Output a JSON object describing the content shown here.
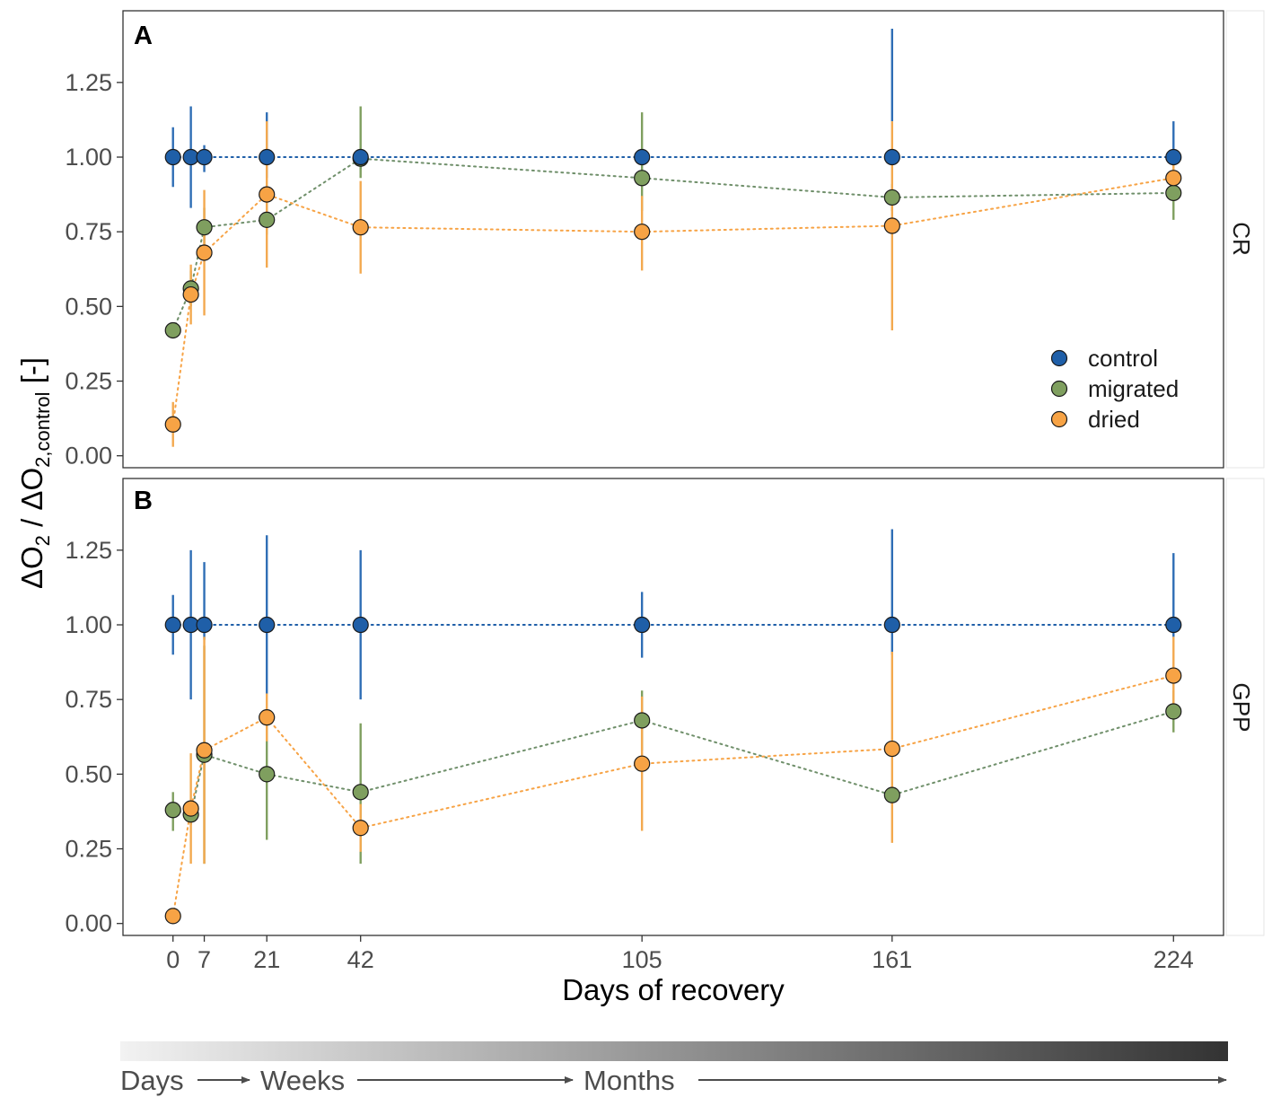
{
  "colors": {
    "control": "#1f5fa8",
    "migrated": "#7f9f5f",
    "dried": "#f7a345",
    "err_control": "#2f6eb5",
    "err_migrated": "#7f9f5f",
    "err_dried": "#f3a94f"
  },
  "chart_data": {
    "type": "scatter",
    "xlabel": "Days of recovery",
    "ylabel_parts": {
      "delta": "Δ",
      "o": "O",
      "sub1": "2",
      "slash": " / ",
      "sub2": "2,control",
      "unit": " [-]"
    },
    "x_ticks": [
      0,
      7,
      21,
      42,
      105,
      161,
      224
    ],
    "x_tick_labels": [
      "0",
      "7",
      "21",
      "42",
      "105",
      "161",
      "224"
    ],
    "xlim": [
      -11.2,
      235.2
    ],
    "ylim": [
      -0.04,
      1.49
    ],
    "y_ticks": [
      0,
      0.25,
      0.5,
      0.75,
      1.0,
      1.25
    ],
    "y_tick_labels": [
      "0.00",
      "0.25",
      "0.50",
      "0.75",
      "1.00",
      "1.25"
    ],
    "legend": [
      "control",
      "migrated",
      "dried"
    ],
    "legend_position": "bottom-right of panel A",
    "panels": [
      {
        "tag": "A",
        "strip": "CR",
        "series": [
          {
            "name": "control",
            "x": [
              0,
              4,
              7,
              21,
              42,
              105,
              161,
              224
            ],
            "y": [
              1.0,
              1.0,
              1.0,
              1.0,
              1.0,
              1.0,
              1.0,
              1.0
            ],
            "lo": [
              0.9,
              0.83,
              0.95,
              0.93,
              0.96,
              0.97,
              1.12,
              0.97
            ],
            "hi": [
              1.1,
              1.17,
              1.04,
              1.15,
              1.02,
              1.03,
              1.43,
              1.12
            ]
          },
          {
            "name": "migrated",
            "x": [
              0,
              4,
              7,
              21,
              42,
              105,
              161,
              224
            ],
            "y": [
              0.42,
              0.56,
              0.765,
              0.79,
              0.995,
              0.93,
              0.865,
              0.88
            ],
            "lo": [
              0.42,
              0.5,
              0.7,
              0.74,
              0.93,
              0.82,
              0.82,
              0.79
            ],
            "hi": [
              0.42,
              0.62,
              0.83,
              0.85,
              1.17,
              1.15,
              0.91,
              0.96
            ]
          },
          {
            "name": "dried",
            "x": [
              0,
              4,
              7,
              21,
              42,
              105,
              161,
              224
            ],
            "y": [
              0.105,
              0.54,
              0.68,
              0.875,
              0.765,
              0.75,
              0.77,
              0.93
            ],
            "lo": [
              0.03,
              0.44,
              0.47,
              0.63,
              0.61,
              0.62,
              0.42,
              0.88
            ],
            "hi": [
              0.18,
              0.64,
              0.89,
              1.12,
              0.92,
              0.87,
              1.12,
              0.98
            ]
          }
        ]
      },
      {
        "tag": "B",
        "strip": "GPP",
        "series": [
          {
            "name": "control",
            "x": [
              0,
              4,
              7,
              21,
              42,
              105,
              161,
              224
            ],
            "y": [
              1.0,
              1.0,
              1.0,
              1.0,
              1.0,
              1.0,
              1.0,
              1.0
            ],
            "lo": [
              0.9,
              0.75,
              0.95,
              0.77,
              0.75,
              0.89,
              0.9,
              0.96
            ],
            "hi": [
              1.1,
              1.25,
              1.21,
              1.3,
              1.25,
              1.11,
              1.32,
              1.24
            ]
          },
          {
            "name": "migrated",
            "x": [
              0,
              4,
              7,
              21,
              42,
              105,
              161,
              224
            ],
            "y": [
              0.38,
              0.365,
              0.565,
              0.5,
              0.44,
              0.68,
              0.43,
              0.71
            ],
            "lo": [
              0.31,
              0.33,
              0.2,
              0.28,
              0.2,
              0.58,
              0.4,
              0.64
            ],
            "hi": [
              0.44,
              0.4,
              0.93,
              0.72,
              0.67,
              0.78,
              0.46,
              0.78
            ]
          },
          {
            "name": "dried",
            "x": [
              0,
              4,
              7,
              21,
              42,
              105,
              161,
              224
            ],
            "y": [
              0.025,
              0.385,
              0.58,
              0.69,
              0.32,
              0.535,
              0.585,
              0.83
            ],
            "lo": [
              0.025,
              0.2,
              0.2,
              0.61,
              0.24,
              0.31,
              0.27,
              0.71
            ],
            "hi": [
              0.025,
              0.57,
              0.96,
              0.77,
              0.4,
              0.76,
              0.91,
              0.96
            ]
          }
        ]
      }
    ]
  },
  "timeline": {
    "labels": [
      "Days",
      "Weeks",
      "Months"
    ]
  }
}
